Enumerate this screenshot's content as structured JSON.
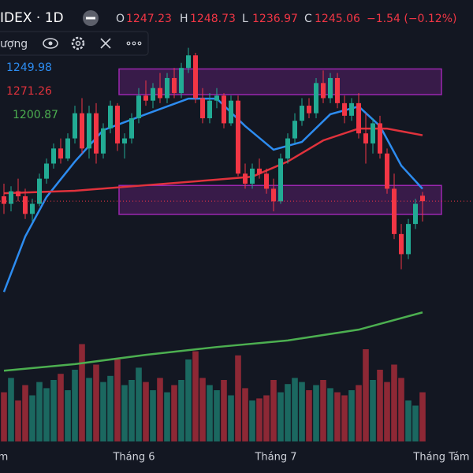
{
  "chart_data": {
    "type": "candlestick",
    "title": "IDEX · 1D",
    "ohlc_labels": [
      "O",
      "H",
      "L",
      "C"
    ],
    "change": "−1.54 (−0.12%)",
    "volume_title": "ượng",
    "up_color": "#22ab94",
    "down_color": "#f23645",
    "ylim": [
      1148,
      1325
    ],
    "y2lim": [
      0,
      100
    ],
    "x_labels": [
      "m",
      "Tháng 6",
      "Tháng 7",
      "Tháng Tám"
    ],
    "open": [
      1247,
      1244,
      1249,
      1247,
      1240,
      1244,
      1254,
      1260,
      1266,
      1262,
      1270,
      1280,
      1266,
      1280,
      1264,
      1274,
      1283,
      1268,
      1270,
      1278,
      1287,
      1285,
      1290,
      1286,
      1294,
      1288,
      1298,
      1303,
      1286,
      1278,
      1285,
      1287,
      1276,
      1285,
      1256,
      1252,
      1258,
      1256,
      1250,
      1245,
      1262,
      1270,
      1277,
      1283,
      1280,
      1292,
      1286,
      1294,
      1284,
      1279,
      1284,
      1272,
      1268,
      1276,
      1264,
      1250,
      1232,
      1224,
      1236,
      1247.23
    ],
    "high": [
      1252,
      1251,
      1254,
      1250,
      1246,
      1256,
      1262,
      1268,
      1270,
      1272,
      1283,
      1286,
      1283,
      1284,
      1276,
      1285,
      1284,
      1272,
      1280,
      1290,
      1293,
      1292,
      1296,
      1296,
      1298,
      1300,
      1306,
      1304,
      1290,
      1288,
      1290,
      1288,
      1287,
      1287,
      1260,
      1260,
      1262,
      1258,
      1254,
      1264,
      1272,
      1280,
      1286,
      1286,
      1294,
      1297,
      1296,
      1296,
      1287,
      1286,
      1288,
      1280,
      1278,
      1279,
      1266,
      1256,
      1236,
      1238,
      1246,
      1248.73
    ],
    "low": [
      1240,
      1241,
      1245,
      1238,
      1237,
      1243,
      1252,
      1258,
      1260,
      1261,
      1268,
      1264,
      1262,
      1260,
      1262,
      1272,
      1265,
      1262,
      1268,
      1276,
      1283,
      1282,
      1284,
      1284,
      1286,
      1286,
      1296,
      1284,
      1276,
      1276,
      1282,
      1274,
      1275,
      1255,
      1250,
      1250,
      1254,
      1248,
      1241,
      1244,
      1260,
      1268,
      1275,
      1278,
      1278,
      1284,
      1284,
      1282,
      1276,
      1277,
      1270,
      1260,
      1264,
      1262,
      1248,
      1230,
      1218,
      1222,
      1234,
      1236.97
    ],
    "close": [
      1244,
      1249,
      1247,
      1240,
      1244,
      1254,
      1260,
      1266,
      1262,
      1270,
      1280,
      1266,
      1280,
      1264,
      1274,
      1283,
      1268,
      1270,
      1278,
      1287,
      1285,
      1290,
      1286,
      1294,
      1288,
      1298,
      1303,
      1286,
      1278,
      1285,
      1287,
      1276,
      1285,
      1256,
      1252,
      1258,
      1256,
      1250,
      1245,
      1262,
      1270,
      1277,
      1283,
      1280,
      1292,
      1286,
      1294,
      1284,
      1279,
      1284,
      1272,
      1268,
      1276,
      1264,
      1250,
      1232,
      1224,
      1236,
      1244,
      1245.06
    ],
    "volume": [
      48,
      62,
      40,
      55,
      45,
      58,
      52,
      60,
      66,
      50,
      70,
      95,
      62,
      75,
      58,
      64,
      80,
      55,
      60,
      72,
      58,
      50,
      62,
      48,
      55,
      60,
      80,
      88,
      62,
      55,
      50,
      60,
      45,
      84,
      52,
      40,
      42,
      45,
      60,
      48,
      56,
      62,
      58,
      50,
      55,
      60,
      52,
      48,
      45,
      50,
      55,
      90,
      60,
      70,
      58,
      75,
      62,
      40,
      35,
      48
    ],
    "zones": [
      {
        "top": 1297.6,
        "bottom": 1287.4,
        "color": "#9c27b0"
      },
      {
        "top": 1251.3,
        "bottom": 1239.8,
        "color": "#9c27b0"
      }
    ],
    "series": [
      {
        "color": "#2d8cf0",
        "x": [
          0,
          3,
          6,
          10,
          14,
          20,
          26,
          30,
          34,
          38,
          42,
          46,
          50,
          53,
          56,
          59
        ],
        "values": [
          1209,
          1231,
          1246.7,
          1260.8,
          1273.3,
          1279.6,
          1285.8,
          1285.8,
          1274.9,
          1265.5,
          1268.6,
          1279.6,
          1282.7,
          1274.9,
          1259.2,
          1249.98
        ]
      },
      {
        "color": "#e0323c",
        "x": [
          0,
          10,
          20,
          30,
          35,
          40,
          45,
          50,
          54,
          59
        ],
        "values": [
          1248.2,
          1249.2,
          1251.4,
          1253.6,
          1254.8,
          1260.8,
          1269.2,
          1273.9,
          1273.9,
          1271.26
        ]
      },
      {
        "color": "#4caf50",
        "x": [
          0,
          10,
          20,
          30,
          40,
          50,
          59
        ],
        "values": [
          1177.7,
          1180.3,
          1184,
          1187.1,
          1189.7,
          1194,
          1200.87
        ]
      }
    ]
  }
}
